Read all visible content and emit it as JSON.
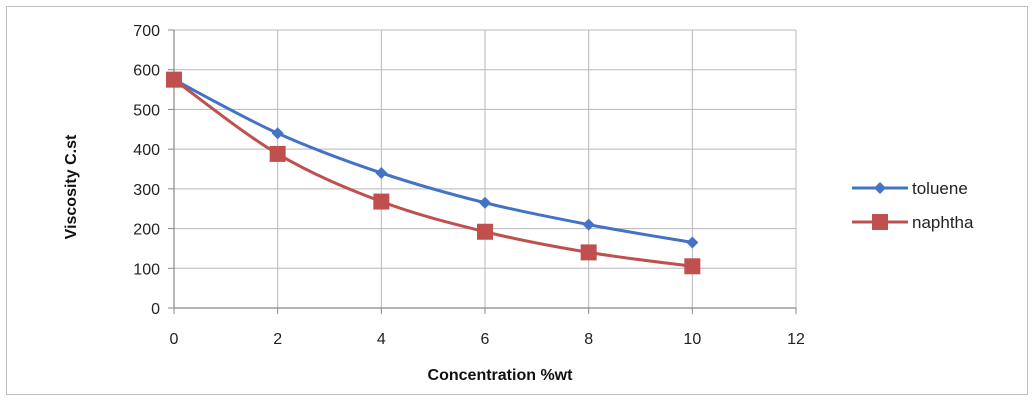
{
  "chart_data": {
    "type": "line",
    "title": "",
    "xlabel": "Concentration %wt",
    "ylabel": "Viscosity C.st",
    "xlim": [
      0,
      12
    ],
    "ylim": [
      0,
      700
    ],
    "xticks": [
      0,
      2,
      4,
      6,
      8,
      10,
      12
    ],
    "yticks": [
      0,
      100,
      200,
      300,
      400,
      500,
      600,
      700
    ],
    "grid": true,
    "legend_position": "right",
    "series": [
      {
        "name": "toluene",
        "color": "#4472C4",
        "marker": "diamond",
        "x": [
          0,
          2,
          4,
          6,
          8,
          10
        ],
        "y": [
          575,
          440,
          340,
          265,
          210,
          165
        ]
      },
      {
        "name": "naphtha",
        "color": "#C0504D",
        "marker": "square",
        "x": [
          0,
          2,
          4,
          6,
          8,
          10
        ],
        "y": [
          575,
          388,
          268,
          192,
          140,
          105
        ]
      }
    ]
  }
}
